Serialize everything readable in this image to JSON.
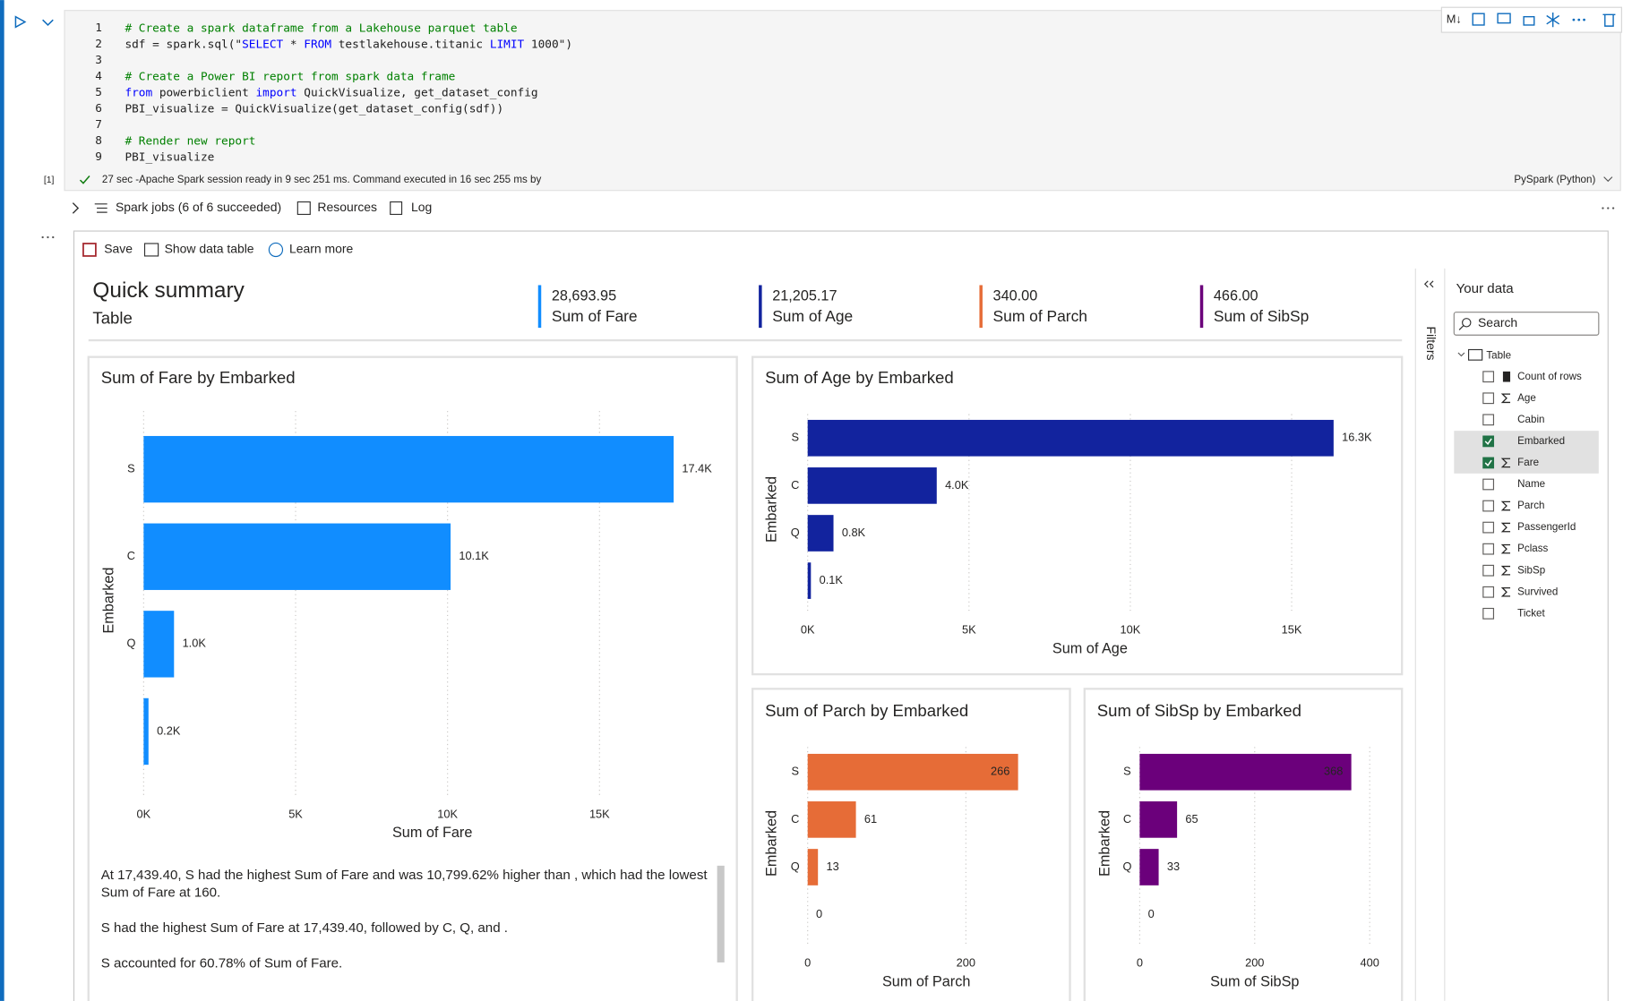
{
  "cell": {
    "lines": [
      {
        "number": 1,
        "code": "# Create a spark dataframe from a Lakehouse parquet table"
      },
      {
        "number": 2,
        "code": "sdf = spark.sql(\"SELECT * FROM testlakehouse.titanic LIMIT 1000\")"
      },
      {
        "number": 3
      },
      {
        "number": 4,
        "code": "# Create a Power BI report from spark data frame"
      },
      {
        "number": 5,
        "code": "from powerbiclient import QuickVisualize, get_dataset_config"
      },
      {
        "number": 6,
        "code": "PBI_visualize = QuickVisualize(get_dataset_config(sdf))"
      },
      {
        "number": 7
      },
      {
        "number": 8,
        "code": "# Render new report"
      },
      {
        "number": 9,
        "code": "PBI_visualize"
      }
    ],
    "execution_count": "[1]",
    "status": "27 sec -Apache Spark session ready in 9 sec 251 ms. Command executed in 16 sec 255 ms by",
    "language": "PySpark (Python)",
    "markdown_button": "M↓"
  },
  "output_bar": {
    "spark_jobs": "Spark jobs (6 of 6 succeeded)",
    "resources": "Resources",
    "log": "Log"
  },
  "report": {
    "toolbar": [
      "Save",
      "Show data table",
      "Learn more"
    ],
    "title": "Quick summary",
    "subtitle": "Table",
    "kpis": [
      {
        "value": "28,693.95",
        "label": "Sum of Fare",
        "color": "#118dff"
      },
      {
        "value": "21,205.17",
        "label": "Sum of Age",
        "color": "#12239e"
      },
      {
        "value": "340.00",
        "label": "Sum of Parch",
        "color": "#e66c37"
      },
      {
        "value": "466.00",
        "label": "Sum of SibSp",
        "color": "#6b007b"
      }
    ]
  },
  "chart_data": [
    {
      "type": "hbar",
      "title": "Sum of Fare by Embarked",
      "x_label": "Sum of Fare",
      "y_label": "Embarked",
      "categories": [
        "S",
        "C",
        "Q",
        null
      ],
      "values": [
        17439.4,
        10100,
        1000,
        160
      ],
      "value_labels": [
        "17.4K",
        "10.1K",
        "1.0K",
        "0.2K"
      ],
      "color": "#118dff",
      "xlim": [
        0,
        19000
      ],
      "xticks": [
        {
          "value": 0,
          "label": "0K"
        },
        {
          "value": 5000,
          "label": "5K"
        },
        {
          "value": 10000,
          "label": "10K"
        },
        {
          "value": 15000,
          "label": "15K"
        }
      ],
      "grid": true
    },
    {
      "type": "hbar",
      "title": "Sum of Age by Embarked",
      "x_label": "Sum of Age",
      "y_label": "Embarked",
      "categories": [
        "S",
        "C",
        "Q",
        null
      ],
      "values": [
        16300,
        4000,
        800,
        100
      ],
      "value_labels": [
        "16.3K",
        "4.0K",
        "0.8K",
        "0.1K"
      ],
      "color": "#12239e",
      "xlim": [
        0,
        17500
      ],
      "xticks": [
        {
          "value": 0,
          "label": "0K"
        },
        {
          "value": 5000,
          "label": "5K"
        },
        {
          "value": 10000,
          "label": "10K"
        },
        {
          "value": 15000,
          "label": "15K"
        }
      ],
      "grid": true
    },
    {
      "type": "hbar",
      "title": "Sum of Parch by Embarked",
      "x_label": "Sum of Parch",
      "y_label": "Embarked",
      "categories": [
        "S",
        "C",
        "Q",
        null
      ],
      "values": [
        266,
        61,
        13,
        0
      ],
      "color": "#e66c37",
      "xlim": [
        0,
        300
      ],
      "xticks": [
        0,
        200
      ],
      "grid": true
    },
    {
      "type": "hbar",
      "title": "Sum of SibSp by Embarked",
      "x_label": "Sum of SibSp",
      "y_label": "Embarked",
      "categories": [
        "S",
        "C",
        "Q",
        null
      ],
      "values": [
        368,
        65,
        33,
        0
      ],
      "color": "#6b007b",
      "xlim": [
        0,
        400
      ],
      "xticks": [
        0,
        200,
        400
      ],
      "grid": true
    }
  ],
  "narrative": [
    "At 17,439.40, S had the highest Sum of Fare and was 10,799.62% higher than , which had the lowest Sum of Fare at 160.",
    "S had the highest Sum of Fare at 17,439.40, followed by C, Q, and .",
    "S accounted for 60.78% of Sum of Fare."
  ],
  "data_pane": {
    "filters": "Filters",
    "title": "Your data",
    "search": "Search",
    "table": "Table",
    "fields": [
      {
        "name": "Count of rows",
        "checked": false,
        "icon": "calc"
      },
      {
        "name": "Age",
        "checked": false,
        "icon": "sum"
      },
      {
        "name": "Cabin",
        "checked": false
      },
      {
        "name": "Embarked",
        "checked": true
      },
      {
        "name": "Fare",
        "checked": true,
        "icon": "sum"
      },
      {
        "name": "Name",
        "checked": false
      },
      {
        "name": "Parch",
        "checked": false,
        "icon": "sum"
      },
      {
        "name": "PassengerId",
        "checked": false,
        "icon": "sum"
      },
      {
        "name": "Pclass",
        "checked": false,
        "icon": "sum"
      },
      {
        "name": "SibSp",
        "checked": false,
        "icon": "sum"
      },
      {
        "name": "Survived",
        "checked": false,
        "icon": "sum"
      },
      {
        "name": "Ticket",
        "checked": false
      }
    ]
  }
}
